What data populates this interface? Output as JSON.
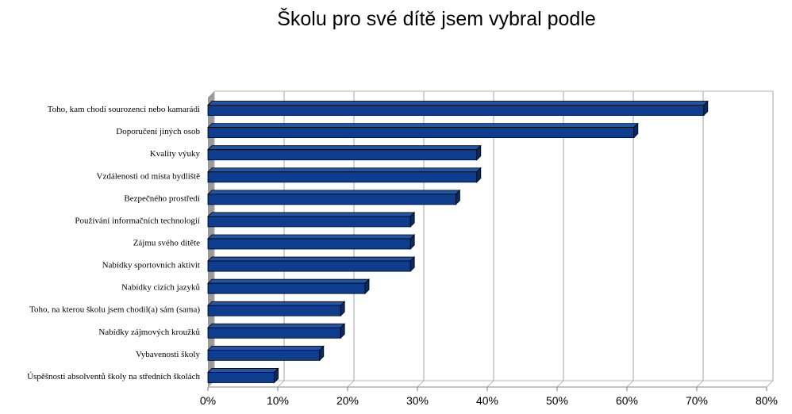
{
  "chart_data": {
    "type": "bar",
    "orientation": "horizontal",
    "title": "Školu pro své dítě jsem vybral podle",
    "categories": [
      "Toho, kam chodí sourozenci nebo kamarádi",
      "Doporučení jiných osob",
      "Kvality výuky",
      "Vzdálenosti od místa bydliště",
      "Bezpečného prostředí",
      "Používání informačních technologií",
      "Zájmu svého dítěte",
      "Nabídky sportovních aktivit",
      "Nabídky cizích jazyků",
      "Toho, na kterou školu jsem chodil(a) sám (sama)",
      "Nabídky zájmových kroužků",
      "Vybavenosti školy",
      "Úspěšnosti absolventů školy na středních školách"
    ],
    "values": [
      71,
      61,
      38.5,
      38.5,
      35.5,
      29,
      29,
      29,
      22.5,
      19,
      19,
      16,
      9.5
    ],
    "xlim": [
      0,
      80
    ],
    "xticks": [
      "0%",
      "10%",
      "20%",
      "30%",
      "40%",
      "50%",
      "60%",
      "70%",
      "80%"
    ],
    "grid": true,
    "legend": "none",
    "colors": {
      "bar": "#0d3d8c",
      "bar_side": "#092a63",
      "bar_top": "#1f56ad",
      "wall": "#9a9a9a"
    }
  }
}
